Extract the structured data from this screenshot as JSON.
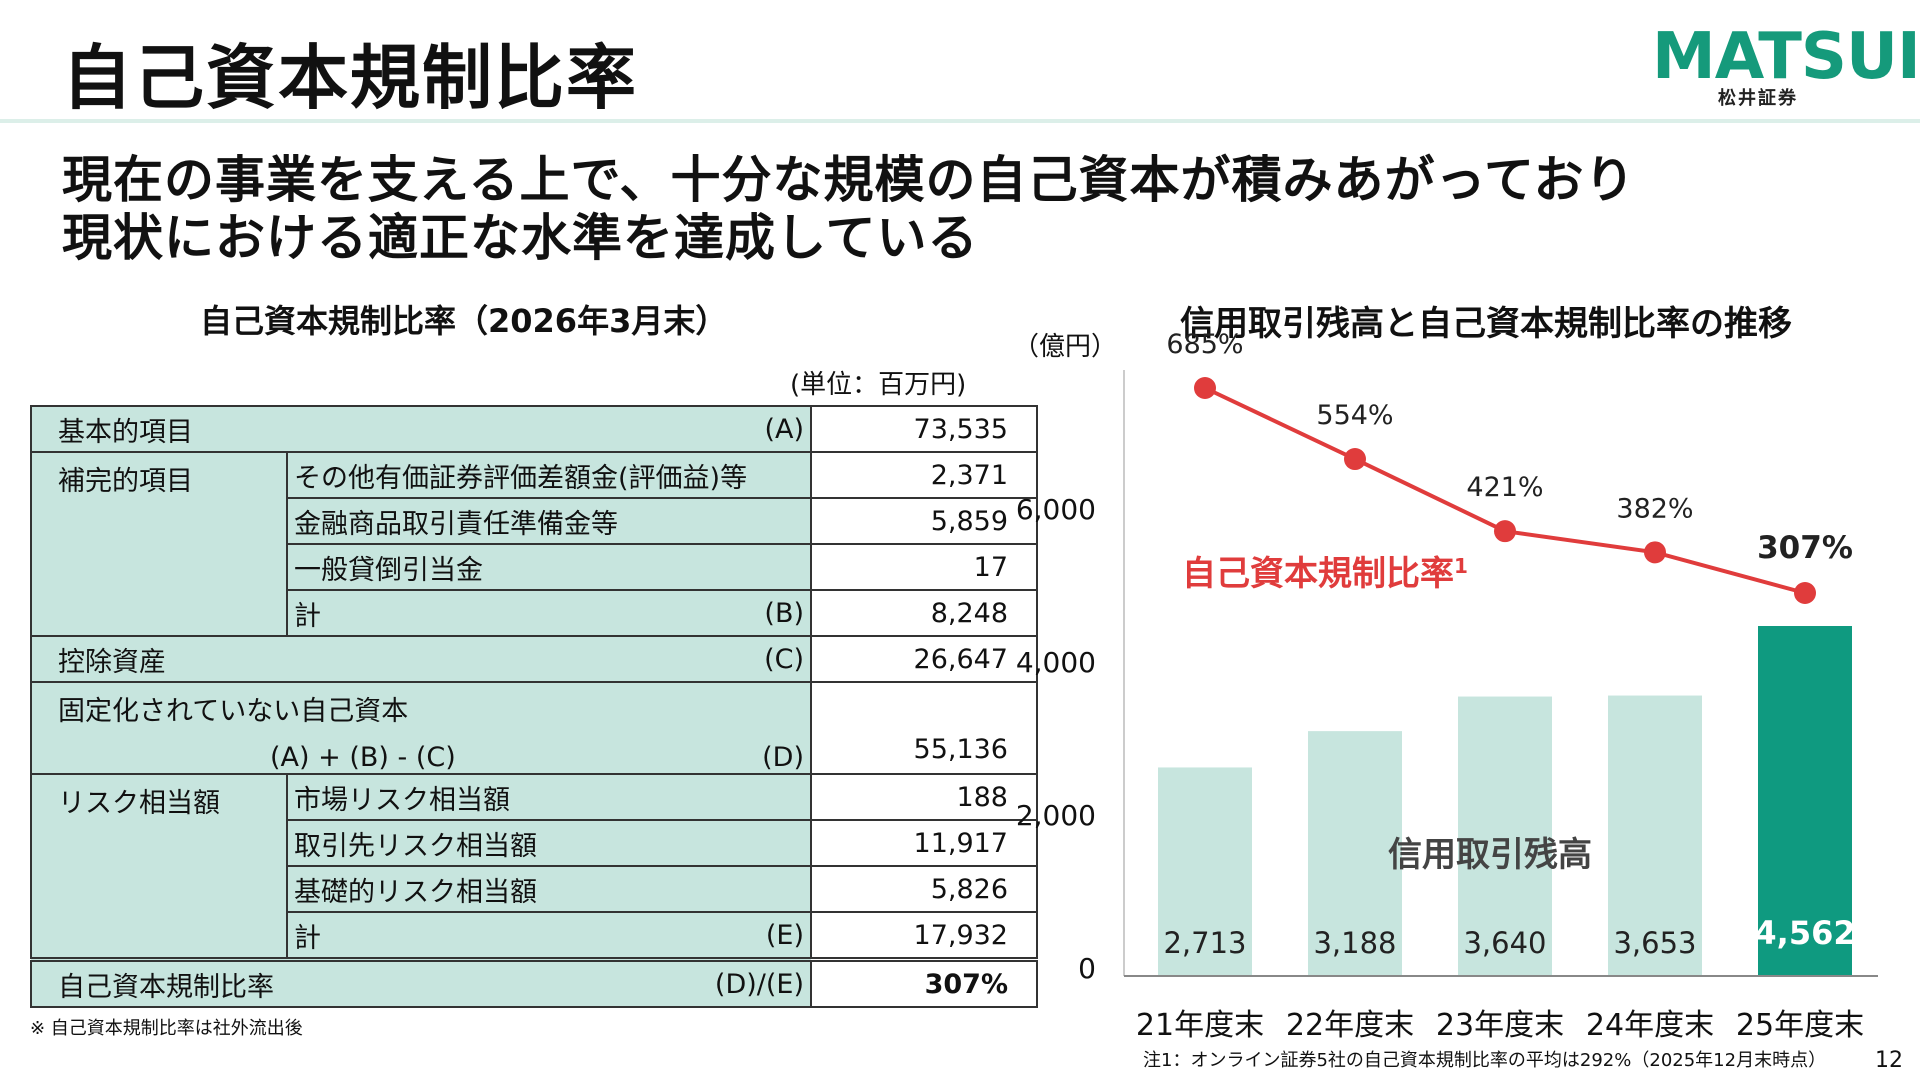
{
  "header": {
    "title": "自己資本規制比率",
    "logo_text": "MATSUI",
    "logo_sub": "松井証券",
    "headline_1": "現在の事業を支える上で、十分な規模の自己資本が積みあがっており",
    "headline_2": "現状における適正な水準を達成している"
  },
  "table": {
    "title": "自己資本規制比率（2026年3月末）",
    "unit": "(単位：百万円)",
    "rows": {
      "kihon": {
        "label": "基本的項目",
        "code": "(A)",
        "value": "73,535"
      },
      "hokan": {
        "label": "補完的項目"
      },
      "hokan_1": {
        "label": "その他有価証券評価差額金(評価益)等",
        "value": "2,371"
      },
      "hokan_2": {
        "label": "金融商品取引責任準備金等",
        "value": "5,859"
      },
      "hokan_3": {
        "label": "一般貸倒引当金",
        "value": "17"
      },
      "hokan_total": {
        "label": "計",
        "code": "(B)",
        "value": "8,248"
      },
      "koujo": {
        "label": "控除資産",
        "code": "(C)",
        "value": "26,647"
      },
      "kotei": {
        "label": "固定化されていない自己資本",
        "formula": "(A) + (B) - (C)",
        "code": "(D)",
        "value": "55,136"
      },
      "risk": {
        "label": "リスク相当額"
      },
      "risk_1": {
        "label": "市場リスク相当額",
        "value": "188"
      },
      "risk_2": {
        "label": "取引先リスク相当額",
        "value": "11,917"
      },
      "risk_3": {
        "label": "基礎的リスク相当額",
        "value": "5,826"
      },
      "risk_total": {
        "label": "計",
        "code": "(E)",
        "value": "17,932"
      },
      "ratio": {
        "label": "自己資本規制比率",
        "code": "(D)/(E)",
        "value": "307%"
      }
    },
    "note": "※ 自己資本規制比率は社外流出後"
  },
  "chart_data": {
    "type": "bar",
    "title": "信用取引残高と自己資本規制比率の推移",
    "ylabel": "（億円）",
    "categories": [
      "21年度末",
      "22年度末",
      "23年度末",
      "24年度末",
      "25年度末"
    ],
    "ylim": [
      0,
      7000
    ],
    "yticks": [
      "0",
      "2,000",
      "4,000",
      "6,000"
    ],
    "series": [
      {
        "name": "信用取引残高",
        "values": [
          2713,
          3188,
          3640,
          3653,
          4562
        ],
        "labels": [
          "2,713",
          "3,188",
          "3,640",
          "3,653",
          "4,562"
        ]
      },
      {
        "name": "自己資本規制比率",
        "sup": "1",
        "type": "line",
        "values": [
          685,
          554,
          421,
          382,
          307
        ],
        "labels": [
          "685%",
          "554%",
          "421%",
          "382%",
          "307%"
        ]
      }
    ],
    "colors": {
      "bar": "#c7e5de",
      "bar_highlight": "#0f9a80",
      "line": "#e03c3c"
    }
  },
  "footer": {
    "note": "注1：オンライン証券5社の自己資本規制比率の平均は292%（2025年12月末時点）",
    "page": "12"
  }
}
